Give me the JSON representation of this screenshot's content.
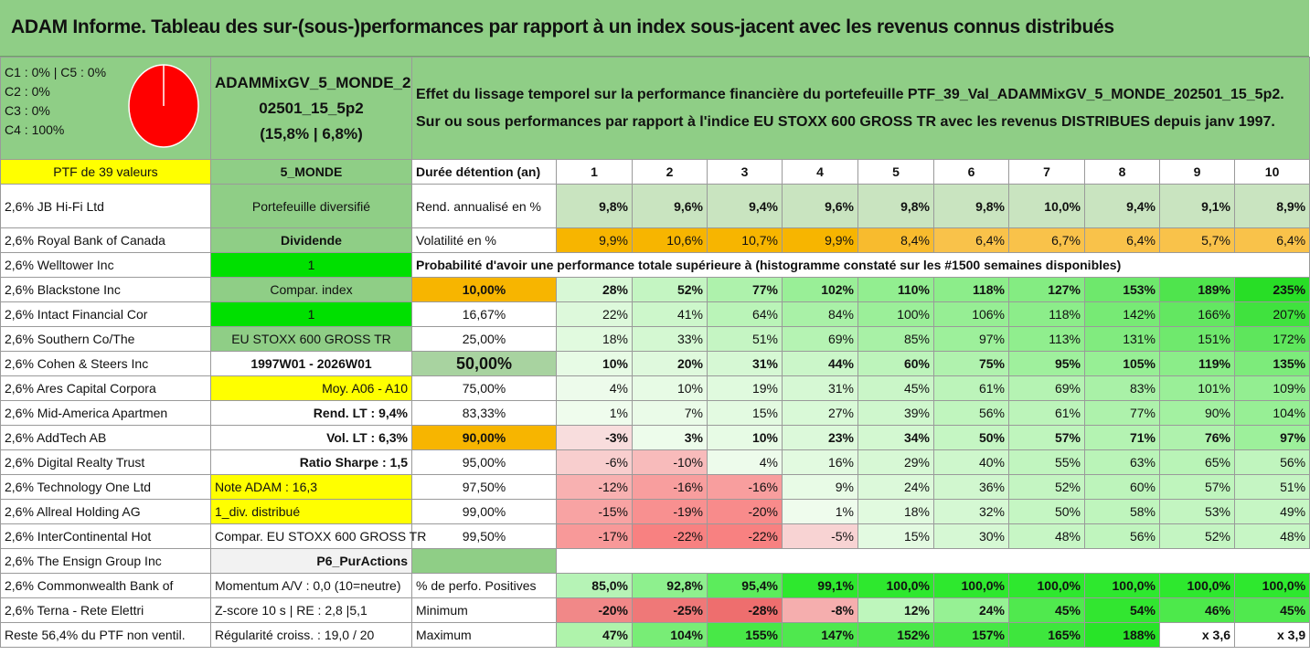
{
  "title": "ADAM Informe. Tableau des sur-(sous-)performances par rapport à un index sous-jacent avec les revenus connus distribués",
  "pie": {
    "legend": [
      "C1 : 0% | C5 : 0%",
      "C2 : 0%",
      "C3 : 0%",
      "C4 : 100%"
    ],
    "color": "#ff0000"
  },
  "portfolio": {
    "name_line1": "ADAMMixGV_5_MONDE_2",
    "name_line2": "02501_15_5p2",
    "name_line3": "(15,8% | 6,8%)",
    "desc_line1": "Effet du lissage temporel sur la performance financière du portefeuille PTF_39_Val_ADAMMixGV_5_MONDE_202501_15_5p2.",
    "desc_line2": "Sur ou sous performances par rapport à l'indice EU STOXX 600 GROSS TR avec les revenus DISTRIBUES depuis janv 1997."
  },
  "ptf_label": "PTF de 39 valeurs",
  "ptf_code": "5_MONDE",
  "duration_label": "Durée détention (an)",
  "years": [
    "1",
    "2",
    "3",
    "4",
    "5",
    "6",
    "7",
    "8",
    "9",
    "10"
  ],
  "holdings": [
    "2,6% JB Hi-Fi Ltd",
    "2,6% Royal Bank of Canada",
    "2,6% Welltower Inc",
    "2,6% Blackstone Inc",
    "2,6% Intact Financial Cor",
    "2,6% Southern Co/The",
    "2,6% Cohen & Steers Inc",
    "2,6% Ares Capital Corpora",
    "2,6% Mid-America Apartmen",
    "2,6% AddTech AB",
    "2,6% Digital Realty Trust",
    "2,6% Technology One Ltd",
    "2,6% Allreal Holding AG",
    "2,6% InterContinental Hot",
    "2,6% The Ensign Group Inc",
    "2,6% Commonwealth Bank of",
    "2,6% Terna - Rete Elettri",
    "Reste 56,4% du PTF non ventil."
  ],
  "info": [
    "Portefeuille diversifié",
    "Dividende",
    "1",
    "Compar. index",
    "1",
    "EU STOXX 600 GROSS TR",
    "1997W01 - 2026W01",
    "Moy. A06 - A10",
    "Rend. LT : 9,4%",
    "Vol. LT : 6,3%",
    "Ratio Sharpe : 1,5",
    "Note ADAM : 16,3",
    "1_div. distribué",
    "Compar. EU STOXX 600 GROSS TR",
    "P6_PurActions",
    "Momentum A/V : 0,0 (10=neutre)",
    "Z-score 10 s | RE : 2,8 |5,1",
    "Régularité croiss. : 19,0 / 20"
  ],
  "rend": {
    "label": "Rend. annualisé en %",
    "values": [
      "9,8%",
      "9,6%",
      "9,4%",
      "9,6%",
      "9,8%",
      "9,8%",
      "10,0%",
      "9,4%",
      "9,1%",
      "8,9%"
    ]
  },
  "vol": {
    "label": "Volatilité en %",
    "values": [
      "9,9%",
      "10,6%",
      "10,7%",
      "9,9%",
      "8,4%",
      "6,4%",
      "6,7%",
      "6,4%",
      "5,7%",
      "6,4%"
    ]
  },
  "proba_label": "Probabilité d'avoir une performance totale supérieure à (histogramme constaté sur les #1500 semaines disponibles)",
  "proba_rows": [
    {
      "p": "10,00%",
      "v": [
        "28%",
        "52%",
        "77%",
        "102%",
        "110%",
        "118%",
        "127%",
        "153%",
        "189%",
        "235%"
      ]
    },
    {
      "p": "16,67%",
      "v": [
        "22%",
        "41%",
        "64%",
        "84%",
        "100%",
        "106%",
        "118%",
        "142%",
        "166%",
        "207%"
      ]
    },
    {
      "p": "25,00%",
      "v": [
        "18%",
        "33%",
        "51%",
        "69%",
        "85%",
        "97%",
        "113%",
        "131%",
        "151%",
        "172%"
      ]
    },
    {
      "p": "50,00%",
      "v": [
        "10%",
        "20%",
        "31%",
        "44%",
        "60%",
        "75%",
        "95%",
        "105%",
        "119%",
        "135%"
      ]
    },
    {
      "p": "75,00%",
      "v": [
        "4%",
        "10%",
        "19%",
        "31%",
        "45%",
        "61%",
        "69%",
        "83%",
        "101%",
        "109%"
      ]
    },
    {
      "p": "83,33%",
      "v": [
        "1%",
        "7%",
        "15%",
        "27%",
        "39%",
        "56%",
        "61%",
        "77%",
        "90%",
        "104%"
      ]
    },
    {
      "p": "90,00%",
      "v": [
        "-3%",
        "3%",
        "10%",
        "23%",
        "34%",
        "50%",
        "57%",
        "71%",
        "76%",
        "97%"
      ]
    },
    {
      "p": "95,00%",
      "v": [
        "-6%",
        "-10%",
        "4%",
        "16%",
        "29%",
        "40%",
        "55%",
        "63%",
        "65%",
        "56%"
      ]
    },
    {
      "p": "97,50%",
      "v": [
        "-12%",
        "-16%",
        "-16%",
        "9%",
        "24%",
        "36%",
        "52%",
        "60%",
        "57%",
        "51%"
      ]
    },
    {
      "p": "99,00%",
      "v": [
        "-15%",
        "-19%",
        "-20%",
        "1%",
        "18%",
        "32%",
        "50%",
        "58%",
        "53%",
        "49%"
      ]
    },
    {
      "p": "99,50%",
      "v": [
        "-17%",
        "-22%",
        "-22%",
        "-5%",
        "15%",
        "30%",
        "48%",
        "56%",
        "52%",
        "48%"
      ]
    }
  ],
  "positives": {
    "label": "% de perfo. Positives",
    "values": [
      "85,0%",
      "92,8%",
      "95,4%",
      "99,1%",
      "100,0%",
      "100,0%",
      "100,0%",
      "100,0%",
      "100,0%",
      "100,0%"
    ]
  },
  "minimum": {
    "label": "Minimum",
    "values": [
      "-20%",
      "-25%",
      "-28%",
      "-8%",
      "12%",
      "24%",
      "45%",
      "54%",
      "46%",
      "45%"
    ]
  },
  "maximum": {
    "label": "Maximum",
    "values": [
      "47%",
      "104%",
      "155%",
      "147%",
      "152%",
      "157%",
      "165%",
      "188%",
      "x 3,6",
      "x 3,9"
    ]
  }
}
